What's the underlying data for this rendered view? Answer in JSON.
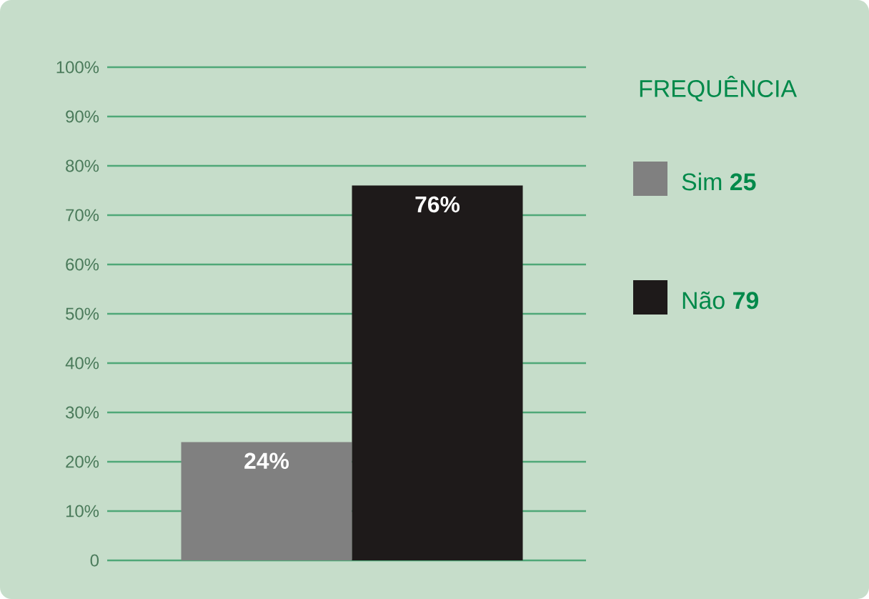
{
  "chart_data": {
    "type": "bar",
    "categories": [
      null,
      null
    ],
    "legend_title": "FREQUÊNCIA",
    "legend": "right",
    "grid": "y",
    "tick_labels": "y",
    "ylim": [
      0,
      100
    ],
    "yticks": [
      0,
      {
        "value": 10,
        "label": "10%"
      },
      {
        "value": 20,
        "label": "20%"
      },
      {
        "value": 30,
        "label": "30%"
      },
      {
        "value": 40,
        "label": "40%"
      },
      {
        "value": 50,
        "label": "50%"
      },
      {
        "value": 60,
        "label": "60%"
      },
      {
        "value": 70,
        "label": "70%"
      },
      {
        "value": 80,
        "label": "80%"
      },
      {
        "value": 90,
        "label": "90%"
      },
      {
        "value": 100,
        "label": "100%"
      }
    ],
    "series": [
      {
        "name": "Sim **25**",
        "color": "#808080",
        "values": [
          24,
          null
        ],
        "value_labels": [
          "24%",
          null
        ]
      },
      {
        "name": "Não **79**",
        "color": "#1e1a1a",
        "values": [
          null,
          76
        ],
        "value_labels": [
          null,
          "76%"
        ]
      }
    ]
  }
}
